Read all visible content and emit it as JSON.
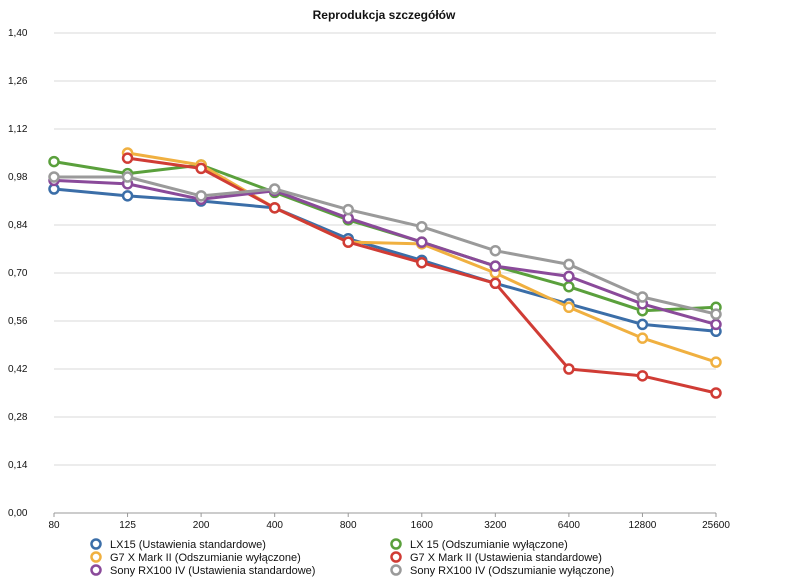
{
  "chart_data": {
    "type": "line",
    "title": "Reprodukcja szczegółów",
    "xlabel": "",
    "ylabel": "",
    "categories": [
      "80",
      "125",
      "200",
      "400",
      "800",
      "1600",
      "3200",
      "6400",
      "12800",
      "25600"
    ],
    "ylim": [
      0,
      1.4
    ],
    "yticks": [
      "0,00",
      "0,14",
      "0,28",
      "0,42",
      "0,56",
      "0,70",
      "0,84",
      "0,98",
      "1,12",
      "1,26",
      "1,40"
    ],
    "grid": true,
    "legend_position": "bottom",
    "series": [
      {
        "name": "LX15 (Ustawienia standardowe)",
        "color": "#3b6ea8",
        "values": [
          0.945,
          0.925,
          0.91,
          0.89,
          0.8,
          0.737,
          0.67,
          0.61,
          0.55,
          0.53
        ]
      },
      {
        "name": "LX 15 (Odszumianie wyłączone)",
        "color": "#5aa03c",
        "values": [
          1.025,
          0.99,
          1.015,
          0.935,
          0.855,
          0.79,
          0.72,
          0.66,
          0.59,
          0.6
        ]
      },
      {
        "name": "G7 X Mark II (Odszumianie wyłączone)",
        "color": "#f0b040",
        "values": [
          null,
          1.05,
          1.015,
          0.89,
          0.79,
          0.785,
          0.7,
          0.6,
          0.51,
          0.44
        ]
      },
      {
        "name": "G7 X Mark II (Ustawienia standardowe)",
        "color": "#d03c35",
        "values": [
          null,
          1.035,
          1.005,
          0.89,
          0.79,
          0.73,
          0.67,
          0.42,
          0.4,
          0.35
        ]
      },
      {
        "name": "Sony RX100 IV (Ustawienia standardowe)",
        "color": "#8a4a9a",
        "values": [
          0.97,
          0.96,
          0.915,
          0.94,
          0.86,
          0.79,
          0.72,
          0.69,
          0.61,
          0.55
        ]
      },
      {
        "name": "Sony RX100 IV (Odszumianie wyłączone)",
        "color": "#9a9a9a",
        "values": [
          0.98,
          0.98,
          0.925,
          0.945,
          0.885,
          0.835,
          0.765,
          0.725,
          0.63,
          0.58
        ]
      }
    ]
  }
}
